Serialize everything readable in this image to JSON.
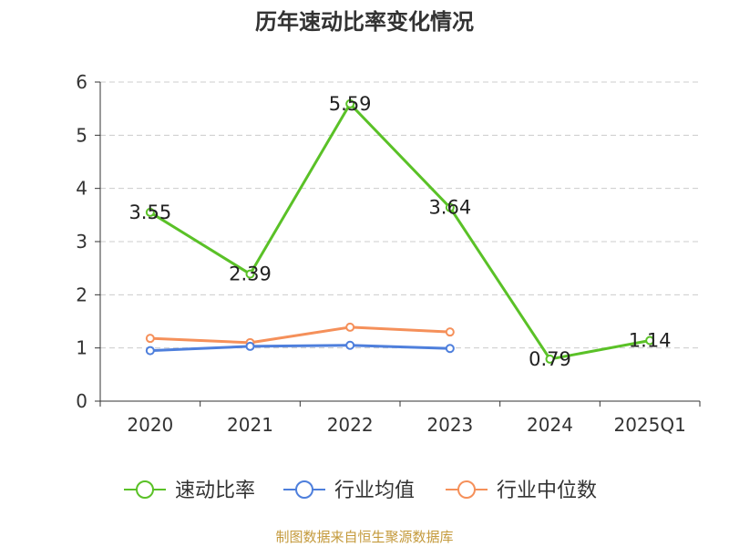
{
  "colors": {
    "title": "#333333",
    "axis": "#333333",
    "grid": "#cccccc",
    "source": "#c49a3c"
  },
  "chart_data": {
    "type": "line",
    "title": "历年速动比率变化情况",
    "categories": [
      "2020",
      "2021",
      "2022",
      "2023",
      "2024",
      "2025Q1"
    ],
    "ylim": [
      0,
      6
    ],
    "yticks": [
      0,
      1,
      2,
      3,
      4,
      5,
      6
    ],
    "grid": true,
    "legend_position": "bottom",
    "series": [
      {
        "name": "速动比率",
        "color": "#5ac127",
        "values": [
          3.55,
          2.39,
          5.59,
          3.64,
          0.79,
          1.14
        ],
        "labels": [
          "3.55",
          "2.39",
          "5.59",
          "3.64",
          "0.79",
          "1.14"
        ]
      },
      {
        "name": "行业均值",
        "color": "#4e7fdc",
        "values": [
          0.95,
          1.03,
          1.05,
          0.99,
          null,
          null
        ]
      },
      {
        "name": "行业中位数",
        "color": "#f5905a",
        "values": [
          1.18,
          1.1,
          1.39,
          1.3,
          null,
          null
        ]
      }
    ]
  },
  "source": "制图数据来自恒生聚源数据库"
}
